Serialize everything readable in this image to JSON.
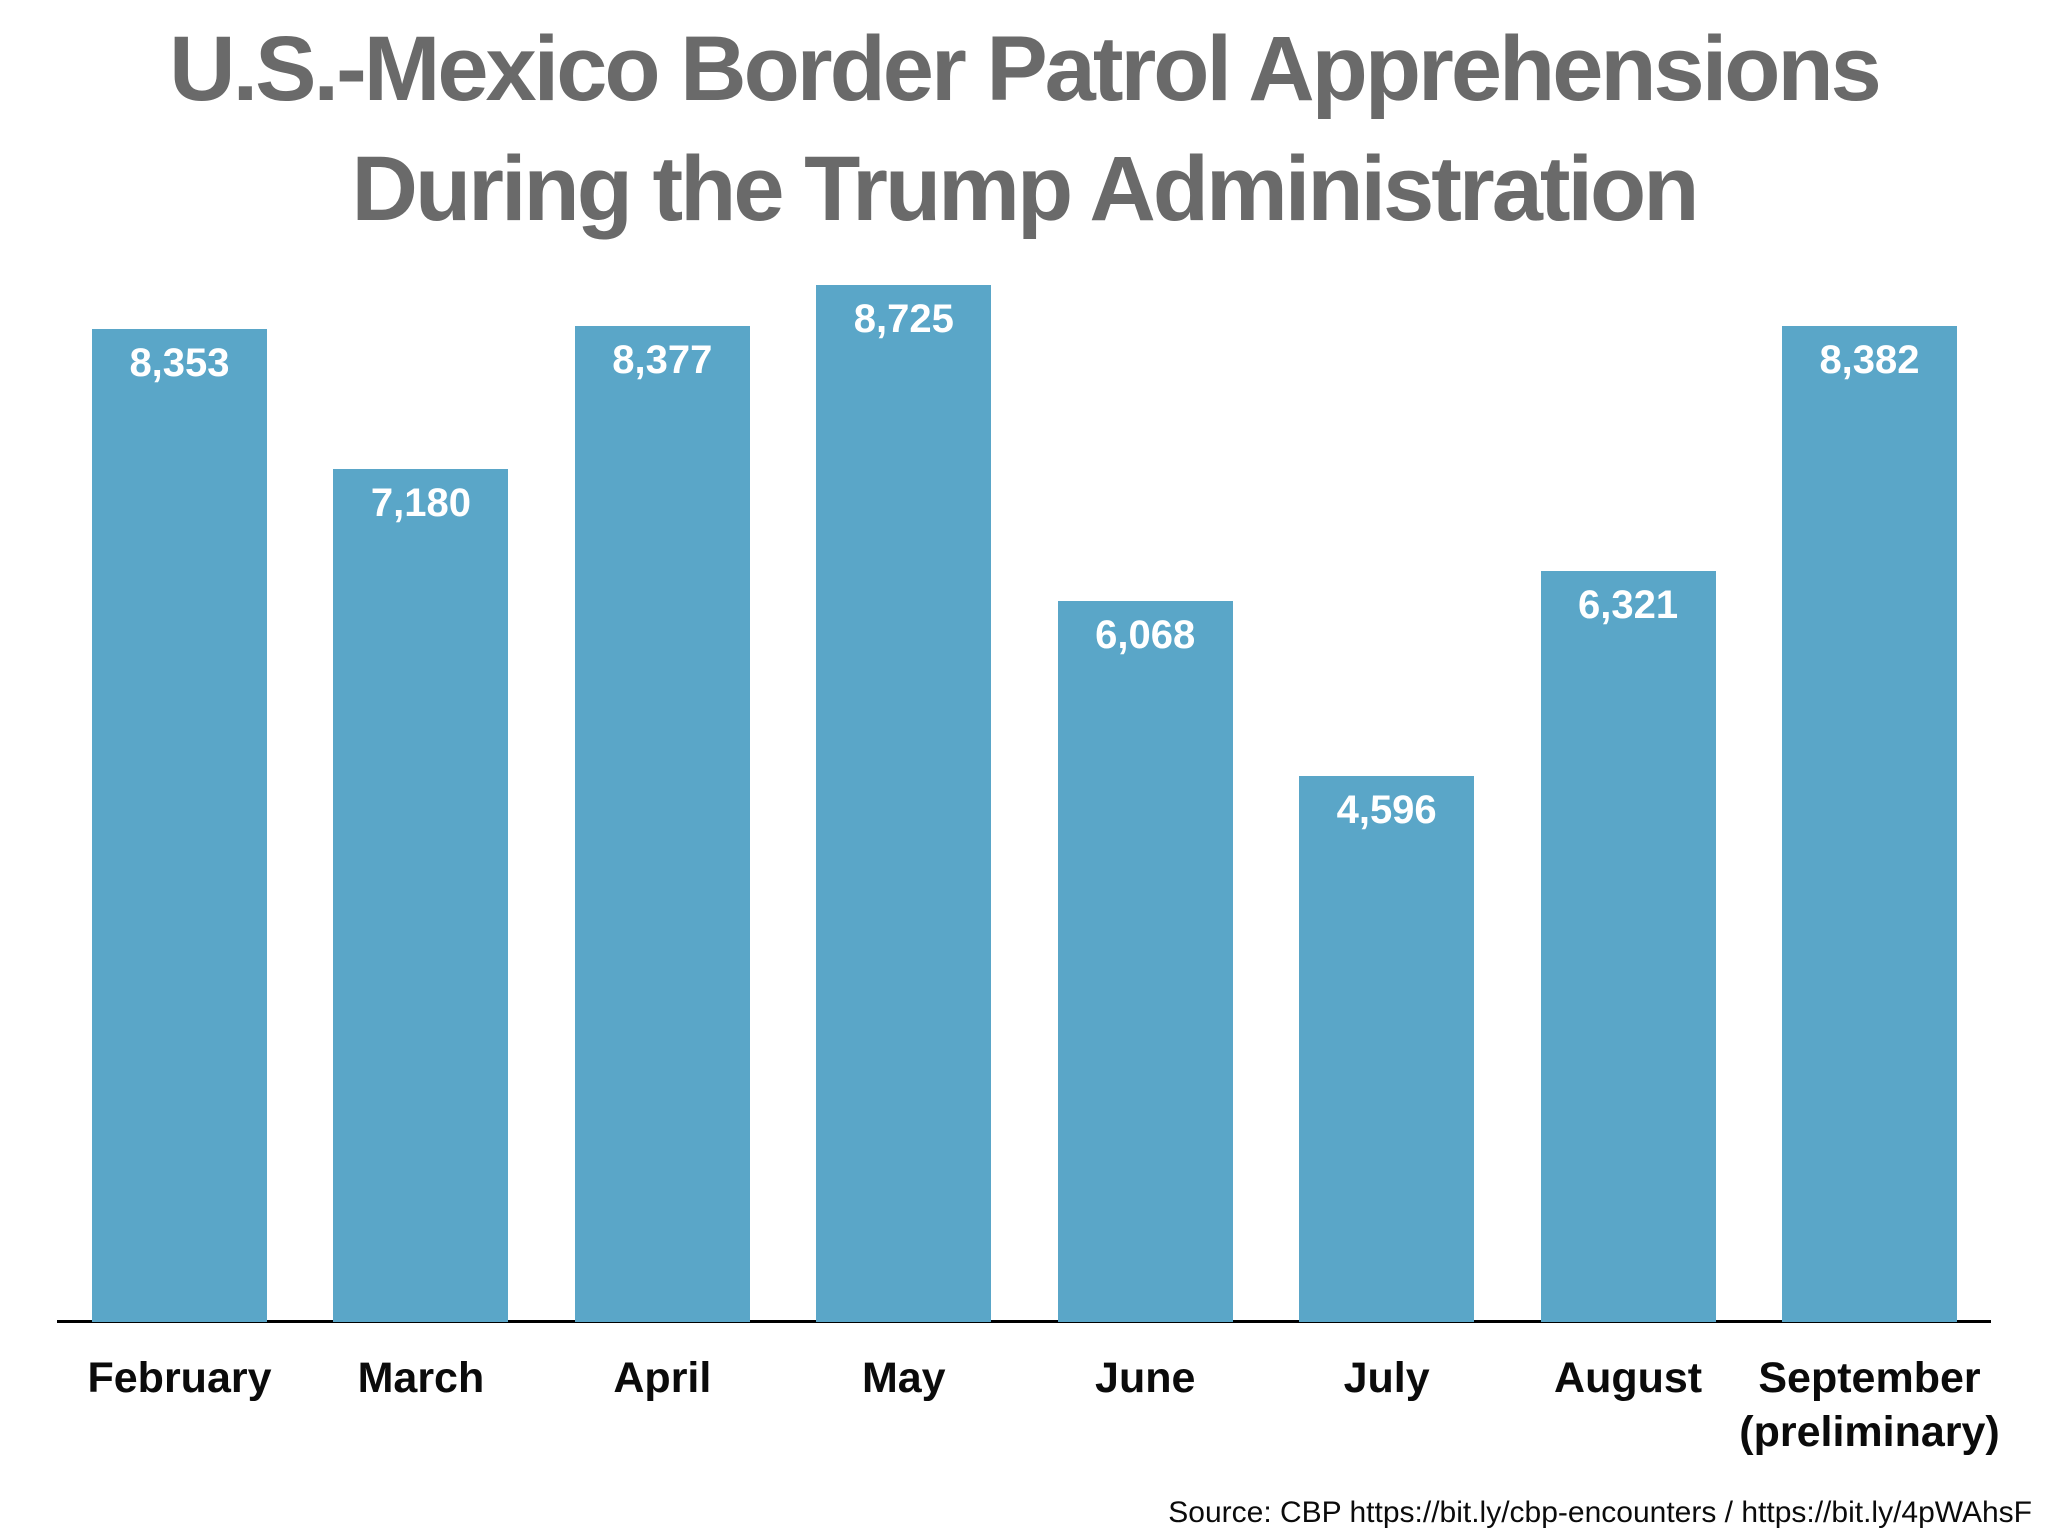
{
  "title": {
    "line1": "U.S.-Mexico Border Patrol Apprehensions",
    "line2": "During the Trump Administration"
  },
  "source": {
    "text": "Source: CBP https://bit.ly/cbp-encounters / https://bit.ly/4pWAhsF"
  },
  "colors": {
    "bar": "#5AA6C8",
    "title": "#6A6A6A",
    "value_label": "#FFFFFF",
    "month_label": "#0B0B0B",
    "axis": "#000000",
    "background": "#FFFFFF"
  },
  "chart_data": {
    "type": "bar",
    "title": "U.S.-Mexico Border Patrol Apprehensions During the Trump Administration",
    "categories": [
      "February",
      "March",
      "April",
      "May",
      "June",
      "July",
      "August",
      "September (preliminary)"
    ],
    "category_lines": [
      [
        "February"
      ],
      [
        "March"
      ],
      [
        "April"
      ],
      [
        "May"
      ],
      [
        "June"
      ],
      [
        "July"
      ],
      [
        "August"
      ],
      [
        "September",
        "(preliminary)"
      ]
    ],
    "values": [
      8353,
      7180,
      8377,
      8725,
      6068,
      4596,
      6321,
      8382
    ],
    "value_labels": [
      "8,353",
      "7,180",
      "8,377",
      "8,725",
      "6,068",
      "4,596",
      "6,321",
      "8,382"
    ],
    "xlabel": "",
    "ylabel": "",
    "ylim": [
      0,
      8725
    ],
    "grid": false,
    "legend": false,
    "value_label_position": "inside-top-of-bar",
    "source": "Source: CBP https://bit.ly/cbp-encounters / https://bit.ly/4pWAhsF"
  }
}
